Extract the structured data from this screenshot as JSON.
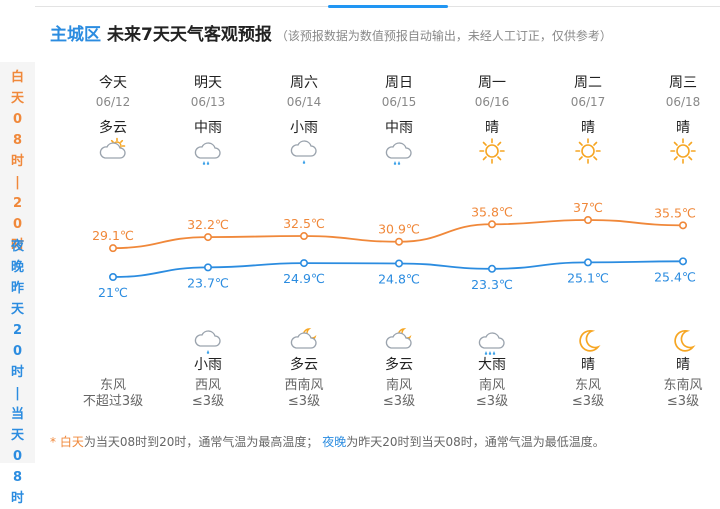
{
  "title": {
    "area": "主城区",
    "main": "未来7天天气客观预报",
    "note": "（该预报数据为数值预报自动输出，未经人工订正，仅供参考）"
  },
  "sidebar": {
    "day_label": "白天08时|20时",
    "night_label": "夜晚昨天20时|当天08时"
  },
  "colors": {
    "day": "#f0883a",
    "night": "#2b8ce0"
  },
  "days": [
    {
      "name": "今天",
      "date": "06/12",
      "day_weather": "多云",
      "day_icon": "partly-cloudy-icon",
      "night_weather": "",
      "night_icon": "",
      "wind_dir": "东风",
      "wind_level": "不超过3级"
    },
    {
      "name": "明天",
      "date": "06/13",
      "day_weather": "中雨",
      "day_icon": "moderate-rain-icon",
      "night_weather": "小雨",
      "night_icon": "light-rain-icon",
      "wind_dir": "西风",
      "wind_level": "≤3级"
    },
    {
      "name": "周六",
      "date": "06/14",
      "day_weather": "小雨",
      "day_icon": "light-rain-icon",
      "night_weather": "多云",
      "night_icon": "partly-cloudy-night-icon",
      "wind_dir": "西南风",
      "wind_level": "≤3级"
    },
    {
      "name": "周日",
      "date": "06/15",
      "day_weather": "中雨",
      "day_icon": "moderate-rain-icon",
      "night_weather": "多云",
      "night_icon": "partly-cloudy-night-icon",
      "wind_dir": "南风",
      "wind_level": "≤3级"
    },
    {
      "name": "周一",
      "date": "06/16",
      "day_weather": "晴",
      "day_icon": "sun-icon",
      "night_weather": "大雨",
      "night_icon": "heavy-rain-icon",
      "wind_dir": "南风",
      "wind_level": "≤3级"
    },
    {
      "name": "周二",
      "date": "06/17",
      "day_weather": "晴",
      "day_icon": "sun-icon",
      "night_weather": "晴",
      "night_icon": "moon-icon",
      "wind_dir": "东风",
      "wind_level": "≤3级"
    },
    {
      "name": "周三",
      "date": "06/18",
      "day_weather": "晴",
      "day_icon": "sun-icon",
      "night_weather": "晴",
      "night_icon": "moon-icon",
      "wind_dir": "东南风",
      "wind_level": "≤3级"
    }
  ],
  "chart_data": {
    "type": "line",
    "categories": [
      "06/12",
      "06/13",
      "06/14",
      "06/15",
      "06/16",
      "06/17",
      "06/18"
    ],
    "series": [
      {
        "values": [
          29.1,
          32.2,
          32.5,
          30.9,
          35.8,
          37,
          35.5
        ],
        "labels": [
          "29.1℃",
          "32.2℃",
          "32.5℃",
          "30.9℃",
          "35.8℃",
          "37℃",
          "35.5℃"
        ],
        "color": "#f0883a"
      },
      {
        "values": [
          21,
          23.7,
          24.9,
          24.8,
          23.3,
          25.1,
          25.4
        ],
        "labels": [
          "21℃",
          "23.7℃",
          "24.9℃",
          "24.8℃",
          "23.3℃",
          "25.1℃",
          "25.4℃"
        ],
        "color": "#2b8ce0"
      }
    ]
  },
  "footnote": {
    "star": "* ",
    "day_term": "白天",
    "day_text": "为当天08时到20时，通常气温为最高温度；",
    "night_term": "夜晚",
    "night_text": "为昨天20时到当天08时，通常气温为最低温度。"
  }
}
